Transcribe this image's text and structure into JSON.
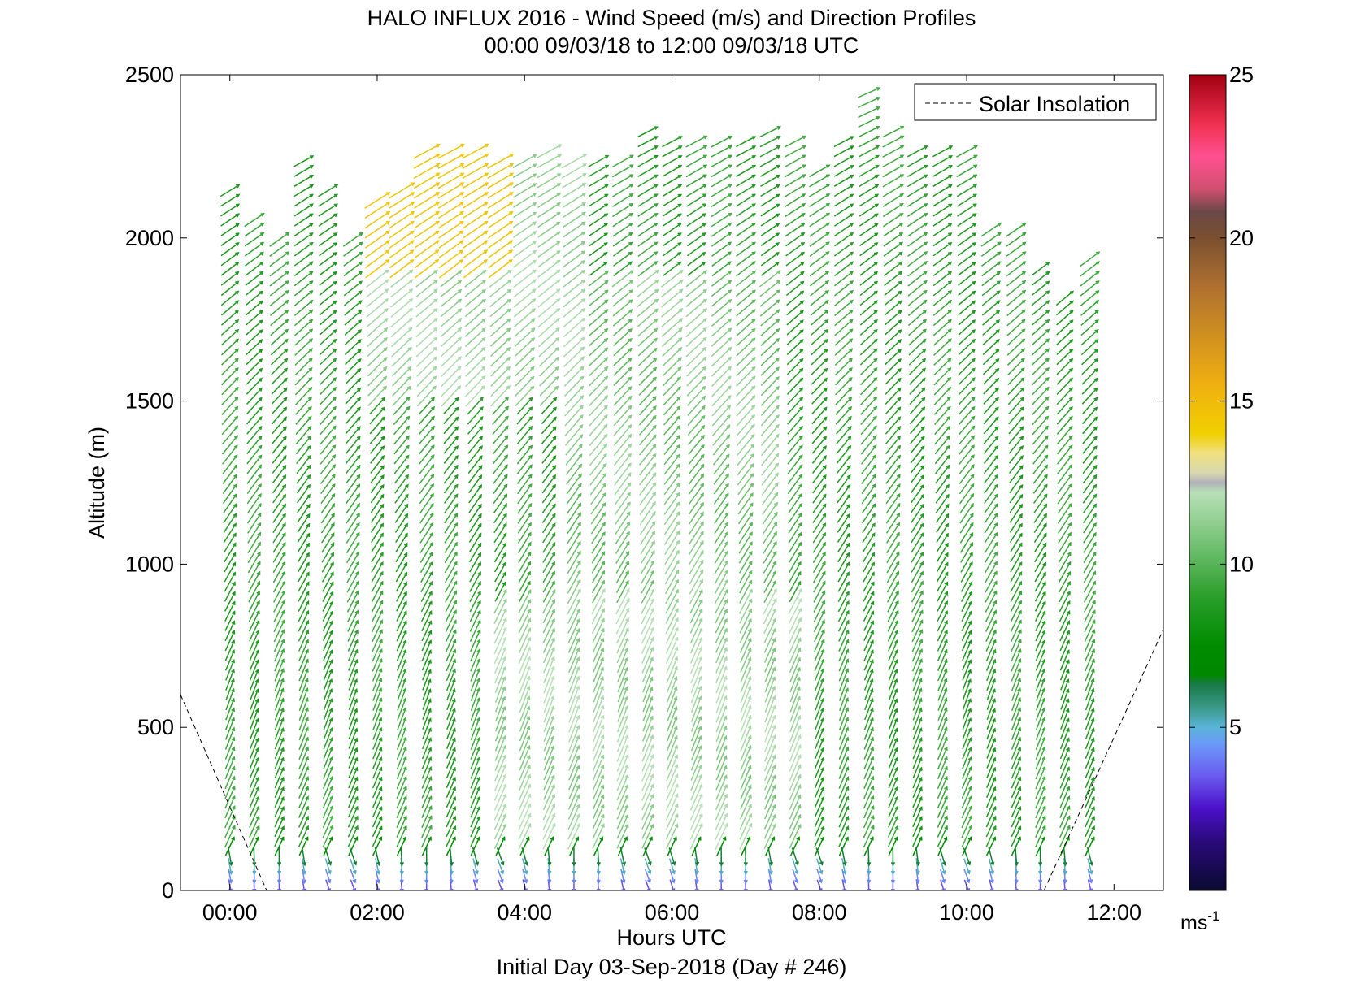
{
  "chart_data": {
    "type": "quiver",
    "title_line1": "HALO INFLUX 2016 - Wind Speed (m/s) and Direction Profiles",
    "title_line2": "00:00 09/03/18 to 12:00 09/03/18  UTC",
    "xlabel": "Hours UTC",
    "subtitle": "Initial Day 03-Sep-2018 (Day # 246)",
    "ylabel": "Altitude (m)",
    "xlim": [
      -0.67,
      12.67
    ],
    "ylim": [
      0,
      2500
    ],
    "x_ticks": [
      {
        "value": 0,
        "label": "00:00"
      },
      {
        "value": 2,
        "label": "02:00"
      },
      {
        "value": 4,
        "label": "04:00"
      },
      {
        "value": 6,
        "label": "06:00"
      },
      {
        "value": 8,
        "label": "08:00"
      },
      {
        "value": 10,
        "label": "10:00"
      },
      {
        "value": 12,
        "label": "12:00"
      }
    ],
    "y_ticks": [
      {
        "value": 0,
        "label": "0"
      },
      {
        "value": 500,
        "label": "500"
      },
      {
        "value": 1000,
        "label": "1000"
      },
      {
        "value": 1500,
        "label": "1500"
      },
      {
        "value": 2000,
        "label": "2000"
      },
      {
        "value": 2500,
        "label": "2500"
      }
    ],
    "legend": {
      "label": "Solar Insolation",
      "position": "top-right"
    },
    "colorbar": {
      "min": 0,
      "max": 25,
      "ticks": [
        {
          "value": 5,
          "label": "5"
        },
        {
          "value": 10,
          "label": "10"
        },
        {
          "value": 15,
          "label": "15"
        },
        {
          "value": 20,
          "label": "20"
        },
        {
          "value": 25,
          "label": "25"
        }
      ],
      "unit_base": "ms",
      "unit_exp": "-1",
      "stops": [
        {
          "v": 0,
          "color": "#0a0a30"
        },
        {
          "v": 1.5,
          "color": "#2a0a7a"
        },
        {
          "v": 2.5,
          "color": "#4a10c8"
        },
        {
          "v": 3.5,
          "color": "#6a5af0"
        },
        {
          "v": 4.5,
          "color": "#6a9af8"
        },
        {
          "v": 5.0,
          "color": "#5ab4d8"
        },
        {
          "v": 5.6,
          "color": "#3a9a88"
        },
        {
          "v": 6.3,
          "color": "#1a7a4a"
        },
        {
          "v": 6.6,
          "color": "#008800"
        },
        {
          "v": 7.5,
          "color": "#008c00"
        },
        {
          "v": 9.0,
          "color": "#2a9e2a"
        },
        {
          "v": 10.5,
          "color": "#6ebf6e"
        },
        {
          "v": 12.2,
          "color": "#b8e0b8"
        },
        {
          "v": 12.5,
          "color": "#b0b0b8"
        },
        {
          "v": 12.8,
          "color": "#d8d8b0"
        },
        {
          "v": 13.4,
          "color": "#f0e080"
        },
        {
          "v": 14.0,
          "color": "#f0d000"
        },
        {
          "v": 15.5,
          "color": "#f0b010"
        },
        {
          "v": 17.0,
          "color": "#d09020"
        },
        {
          "v": 18.5,
          "color": "#b07030"
        },
        {
          "v": 20.0,
          "color": "#7a5030"
        },
        {
          "v": 20.8,
          "color": "#6a4848"
        },
        {
          "v": 21.5,
          "color": "#d05070"
        },
        {
          "v": 22.5,
          "color": "#ff5090"
        },
        {
          "v": 23.5,
          "color": "#f03050"
        },
        {
          "v": 25.0,
          "color": "#a00010"
        }
      ]
    },
    "solar_insolation": [
      {
        "x": -0.67,
        "y": 600
      },
      {
        "x": 0.5,
        "y": 0
      },
      {
        "x": 11.05,
        "y": 0
      },
      {
        "x": 12.67,
        "y": 800
      }
    ],
    "profile_times_hr": [
      0.0,
      0.33,
      0.67,
      1.0,
      1.33,
      1.67,
      2.0,
      2.33,
      2.67,
      3.0,
      3.33,
      3.67,
      4.0,
      4.33,
      4.67,
      5.0,
      5.33,
      5.67,
      6.0,
      6.33,
      6.67,
      7.0,
      7.33,
      7.67,
      8.0,
      8.33,
      8.67,
      9.0,
      9.33,
      9.67,
      10.0,
      10.33,
      10.67,
      11.0,
      11.33,
      11.67
    ],
    "profile_top_m": [
      2170,
      2080,
      2000,
      2250,
      2170,
      2000,
      2120,
      2170,
      2280,
      2280,
      2280,
      2250,
      2250,
      2280,
      2250,
      2250,
      2250,
      2330,
      2300,
      2300,
      2300,
      2300,
      2330,
      2300,
      2230,
      2300,
      2450,
      2330,
      2280,
      2280,
      2280,
      2040,
      2040,
      1920,
      1820,
      1960
    ],
    "speed_model": {
      "surface_mps": 3,
      "background_mps": 9,
      "moderate_mps": 11.5,
      "strong_mps": 14.5
    }
  }
}
